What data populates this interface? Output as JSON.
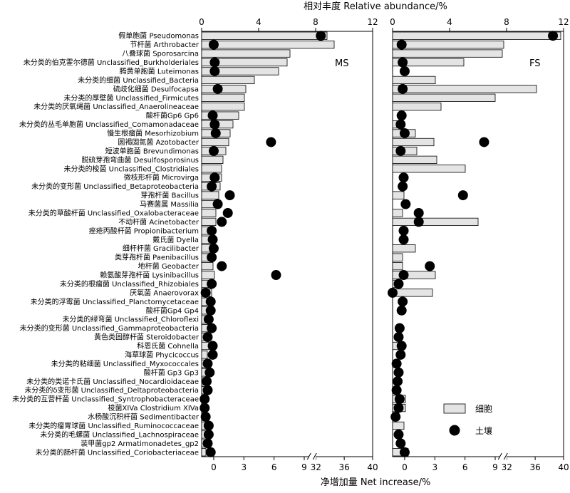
{
  "chart_data": {
    "type": "bar",
    "top_axis_title": "相对丰度 Relative abundance/%",
    "bottom_axis_title": "净增加量 Net increase/%",
    "top_ticks": [
      0,
      4,
      8,
      12
    ],
    "bottom_ticks_left": [
      0,
      3,
      6,
      9
    ],
    "bottom_ticks_right": [
      32,
      36,
      40
    ],
    "legend": [
      {
        "label": "细胞",
        "marker": "bar",
        "color": "#e4e4e4"
      },
      {
        "label": "土壤",
        "marker": "dot",
        "color": "#000000"
      }
    ],
    "categories": [
      "假单胞菌 Pseudomonas",
      "节杆菌 Arthrobacter",
      "八叠球菌 Sporosarcina",
      "未分类的伯克霍尔德菌 Unclassified_Burkholderiales",
      "腾黄单胞菌 Luteimonas",
      "未分类的细菌 Unclassified_Bacteria",
      "硫歧化细菌 Desulfocapsa",
      "未分类的厚壁菌 Unclassified_Firmicutes",
      "未分类的厌氧绳菌 Unclassified_Anaerolineaceae",
      "酸杆菌Gp6 Gp6",
      "未分类的丛毛单胞菌 Unclassified_Comamonadaceae",
      "慢生根瘤菌 Mesorhizobium",
      "圆褐固氮菌 Azotobacter",
      "短波单胞菌 Brevundimonas",
      "脱硫芽孢弯曲菌 Desulfosporosinus",
      "未分类的梭菌 Unclassified_Clostridiales",
      "微枝形杆菌 Microvirga",
      "未分类的变形菌 Unclassified_Betaproteobacteria",
      "芽孢杆菌 Bacillus",
      "马赛菌属 Massilia",
      "未分类的草酸杆菌 Unclassified_Oxalobacteraceae",
      "不动杆菌 Acinetobacter",
      "痤疮丙酸杆菌 Propionibacterium",
      "戴氏菌 Dyella",
      "细杆杆菌 Gracilibacter",
      "类芽孢杆菌 Paenibacillus",
      "地杆菌 Geobacter",
      "赖氨酸芽孢杆菌 Lysinibacillus",
      "未分类的根瘤菌 Unclassified_Rhizobiales",
      "厌氧菌 Anaerovorax",
      "未分类的浮霉菌 Unclassified_Planctomycetaceae",
      "酸杆菌Gp4 Gp4",
      "未分类的绿弯菌 Unclassified_Chloroflexi",
      "未分类的变形菌 Unclassified_Gammaproteobacteria",
      "黄色类固醇杆菌 Steroidobacter",
      "科恩氏菌 Cohnella",
      "海草球菌 Phycicoccus",
      "未分类的粘细菌 Unclassified_Myxococcales",
      "酸杆菌 Gp3 Gp3",
      "未分类的类诺卡氏菌 Unclassified_Nocardioidaceae",
      "未分类的δ变形菌 Unclassified_Deltaproteobacteria",
      "未分类的互营杆菌 Unclassified_Syntrophobacteraceae",
      "梭菌XIVa Clostridium XIVa",
      "水杨酸沉积杆菌 Sedimentibacter",
      "未分类的瘤胃球菌 Unclassified_Ruminococcaceae",
      "未分类的毛螺菌 Unclassified_Lachnospiraceae",
      "装甲菌gp2 Armatimonadetes_gp2",
      "未分类的肠杆菌 Unclassified_Coriobacteriaceae"
    ],
    "panels": [
      {
        "name": "MS",
        "relative_abundance": [
          8.8,
          9.3,
          6.2,
          6.0,
          5.4,
          3.7,
          3.1,
          3.0,
          3.0,
          2.6,
          2.2,
          2.0,
          1.9,
          1.7,
          1.5,
          1.4,
          1.4,
          1.3,
          1.2,
          1.1,
          1.0,
          1.0,
          0.9,
          0.9,
          0.8,
          0.8,
          0.8,
          0.9,
          0.7,
          0.7,
          0.6,
          0.6,
          0.6,
          0.5,
          0.5,
          0.5,
          0.4,
          0.4,
          0.4,
          0.4,
          0.4,
          0.3,
          0.3,
          0.3,
          0.3,
          0.3,
          0.3,
          0.3
        ],
        "net_increase": [
          32.7,
          0.0,
          null,
          0.1,
          0.1,
          null,
          0.4,
          null,
          null,
          -0.1,
          0.1,
          0.2,
          5.7,
          0.0,
          null,
          null,
          0.1,
          -0.2,
          1.6,
          0.4,
          1.4,
          0.8,
          -0.2,
          -0.1,
          0.0,
          -0.2,
          0.8,
          6.2,
          -0.2,
          -0.8,
          -0.3,
          -0.3,
          -0.5,
          -0.2,
          -0.6,
          -0.1,
          -0.1,
          -0.6,
          -0.4,
          -0.7,
          -0.6,
          -0.9,
          -0.9,
          -0.8,
          -0.5,
          -0.5,
          -0.6,
          -0.3
        ]
      },
      {
        "name": "FS",
        "relative_abundance": [
          11.8,
          7.8,
          7.7,
          5.0,
          null,
          3.0,
          10.1,
          7.2,
          3.4,
          null,
          0.3,
          1.6,
          2.9,
          1.7,
          3.1,
          5.1,
          null,
          null,
          0.8,
          null,
          0.7,
          6.0,
          null,
          null,
          1.6,
          0.7,
          0.7,
          3.0,
          0.4,
          2.8,
          null,
          null,
          null,
          null,
          null,
          0.4,
          null,
          null,
          null,
          null,
          null,
          0.9,
          0.9,
          null,
          0.8,
          null,
          null,
          1.1
        ],
        "net_increase": [
          38.5,
          -0.3,
          null,
          -0.2,
          0.0,
          null,
          -0.2,
          null,
          null,
          -0.3,
          -0.4,
          0.0,
          7.9,
          -0.4,
          null,
          null,
          -0.1,
          -0.2,
          5.8,
          0.1,
          1.4,
          1.4,
          -0.1,
          -0.1,
          null,
          null,
          2.5,
          -0.1,
          -0.6,
          -1.2,
          -0.2,
          -0.3,
          null,
          -0.5,
          -0.6,
          -0.3,
          -0.4,
          -0.8,
          -0.6,
          -0.7,
          -0.8,
          -0.5,
          -0.6,
          -0.9,
          null,
          -0.6,
          -0.4,
          0.0
        ]
      }
    ]
  }
}
